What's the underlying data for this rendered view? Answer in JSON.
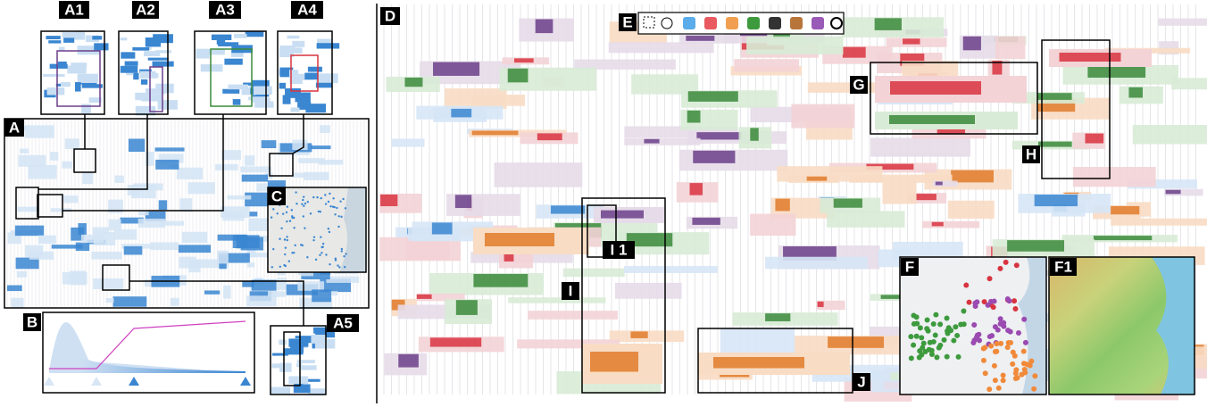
{
  "figure": {
    "labels": {
      "A": "A",
      "A1": "A1",
      "A2": "A2",
      "A3": "A3",
      "A4": "A4",
      "A5": "A5",
      "B": "B",
      "C": "C",
      "D": "D",
      "E": "E",
      "F": "F",
      "F1": "F1",
      "G": "G",
      "H": "H",
      "I": "I",
      "I1": "I 1",
      "J": "J"
    }
  }
}
